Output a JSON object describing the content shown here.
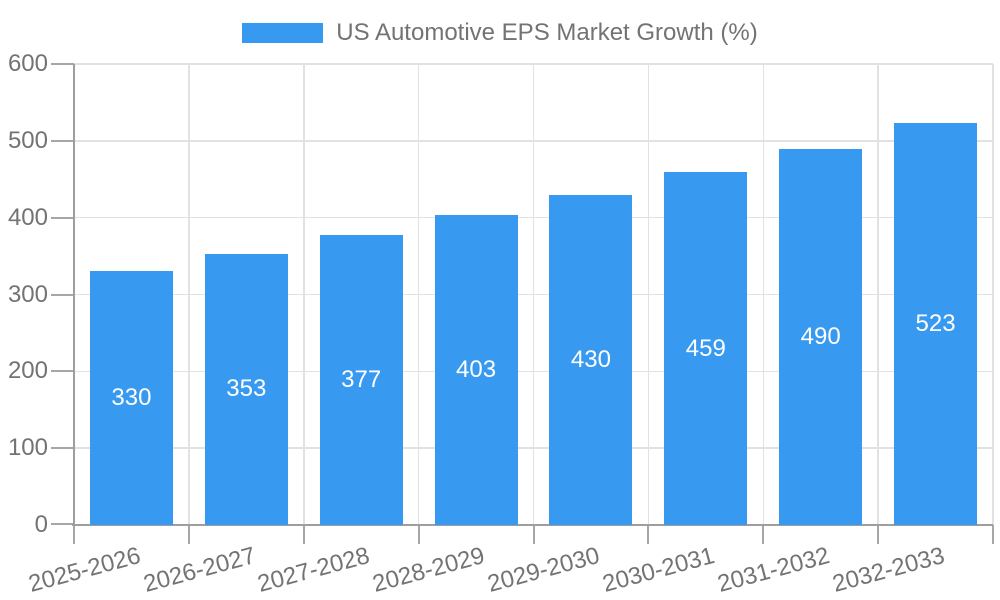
{
  "chart_data": {
    "type": "bar",
    "title": "US Automotive EPS Market Growth (%)",
    "legend_position": "top",
    "categories": [
      "2025-2026",
      "2026-2027",
      "2027-2028",
      "2028-2029",
      "2029-2030",
      "2030-2031",
      "2031-2032",
      "2032-2033"
    ],
    "values": [
      330,
      353,
      377,
      403,
      430,
      459,
      490,
      523
    ],
    "series": [
      {
        "name": "US Automotive EPS Market Growth (%)",
        "values": [
          330,
          353,
          377,
          403,
          430,
          459,
          490,
          523
        ]
      }
    ],
    "xlabel": "",
    "ylabel": "",
    "ylim": [
      0,
      600
    ],
    "yticks": [
      0,
      100,
      200,
      300,
      400,
      500,
      600
    ],
    "grid": true,
    "x_label_rotation_deg": -15,
    "value_label_position": "inside-center",
    "colors": {
      "bar": "#3899F0",
      "axis": "#9E9E9E",
      "tick": "#A6A6A6",
      "grid": "#E2E2E2",
      "text": "#737373",
      "value_label": "#FFFFFF",
      "background": "#FFFFFF"
    }
  }
}
